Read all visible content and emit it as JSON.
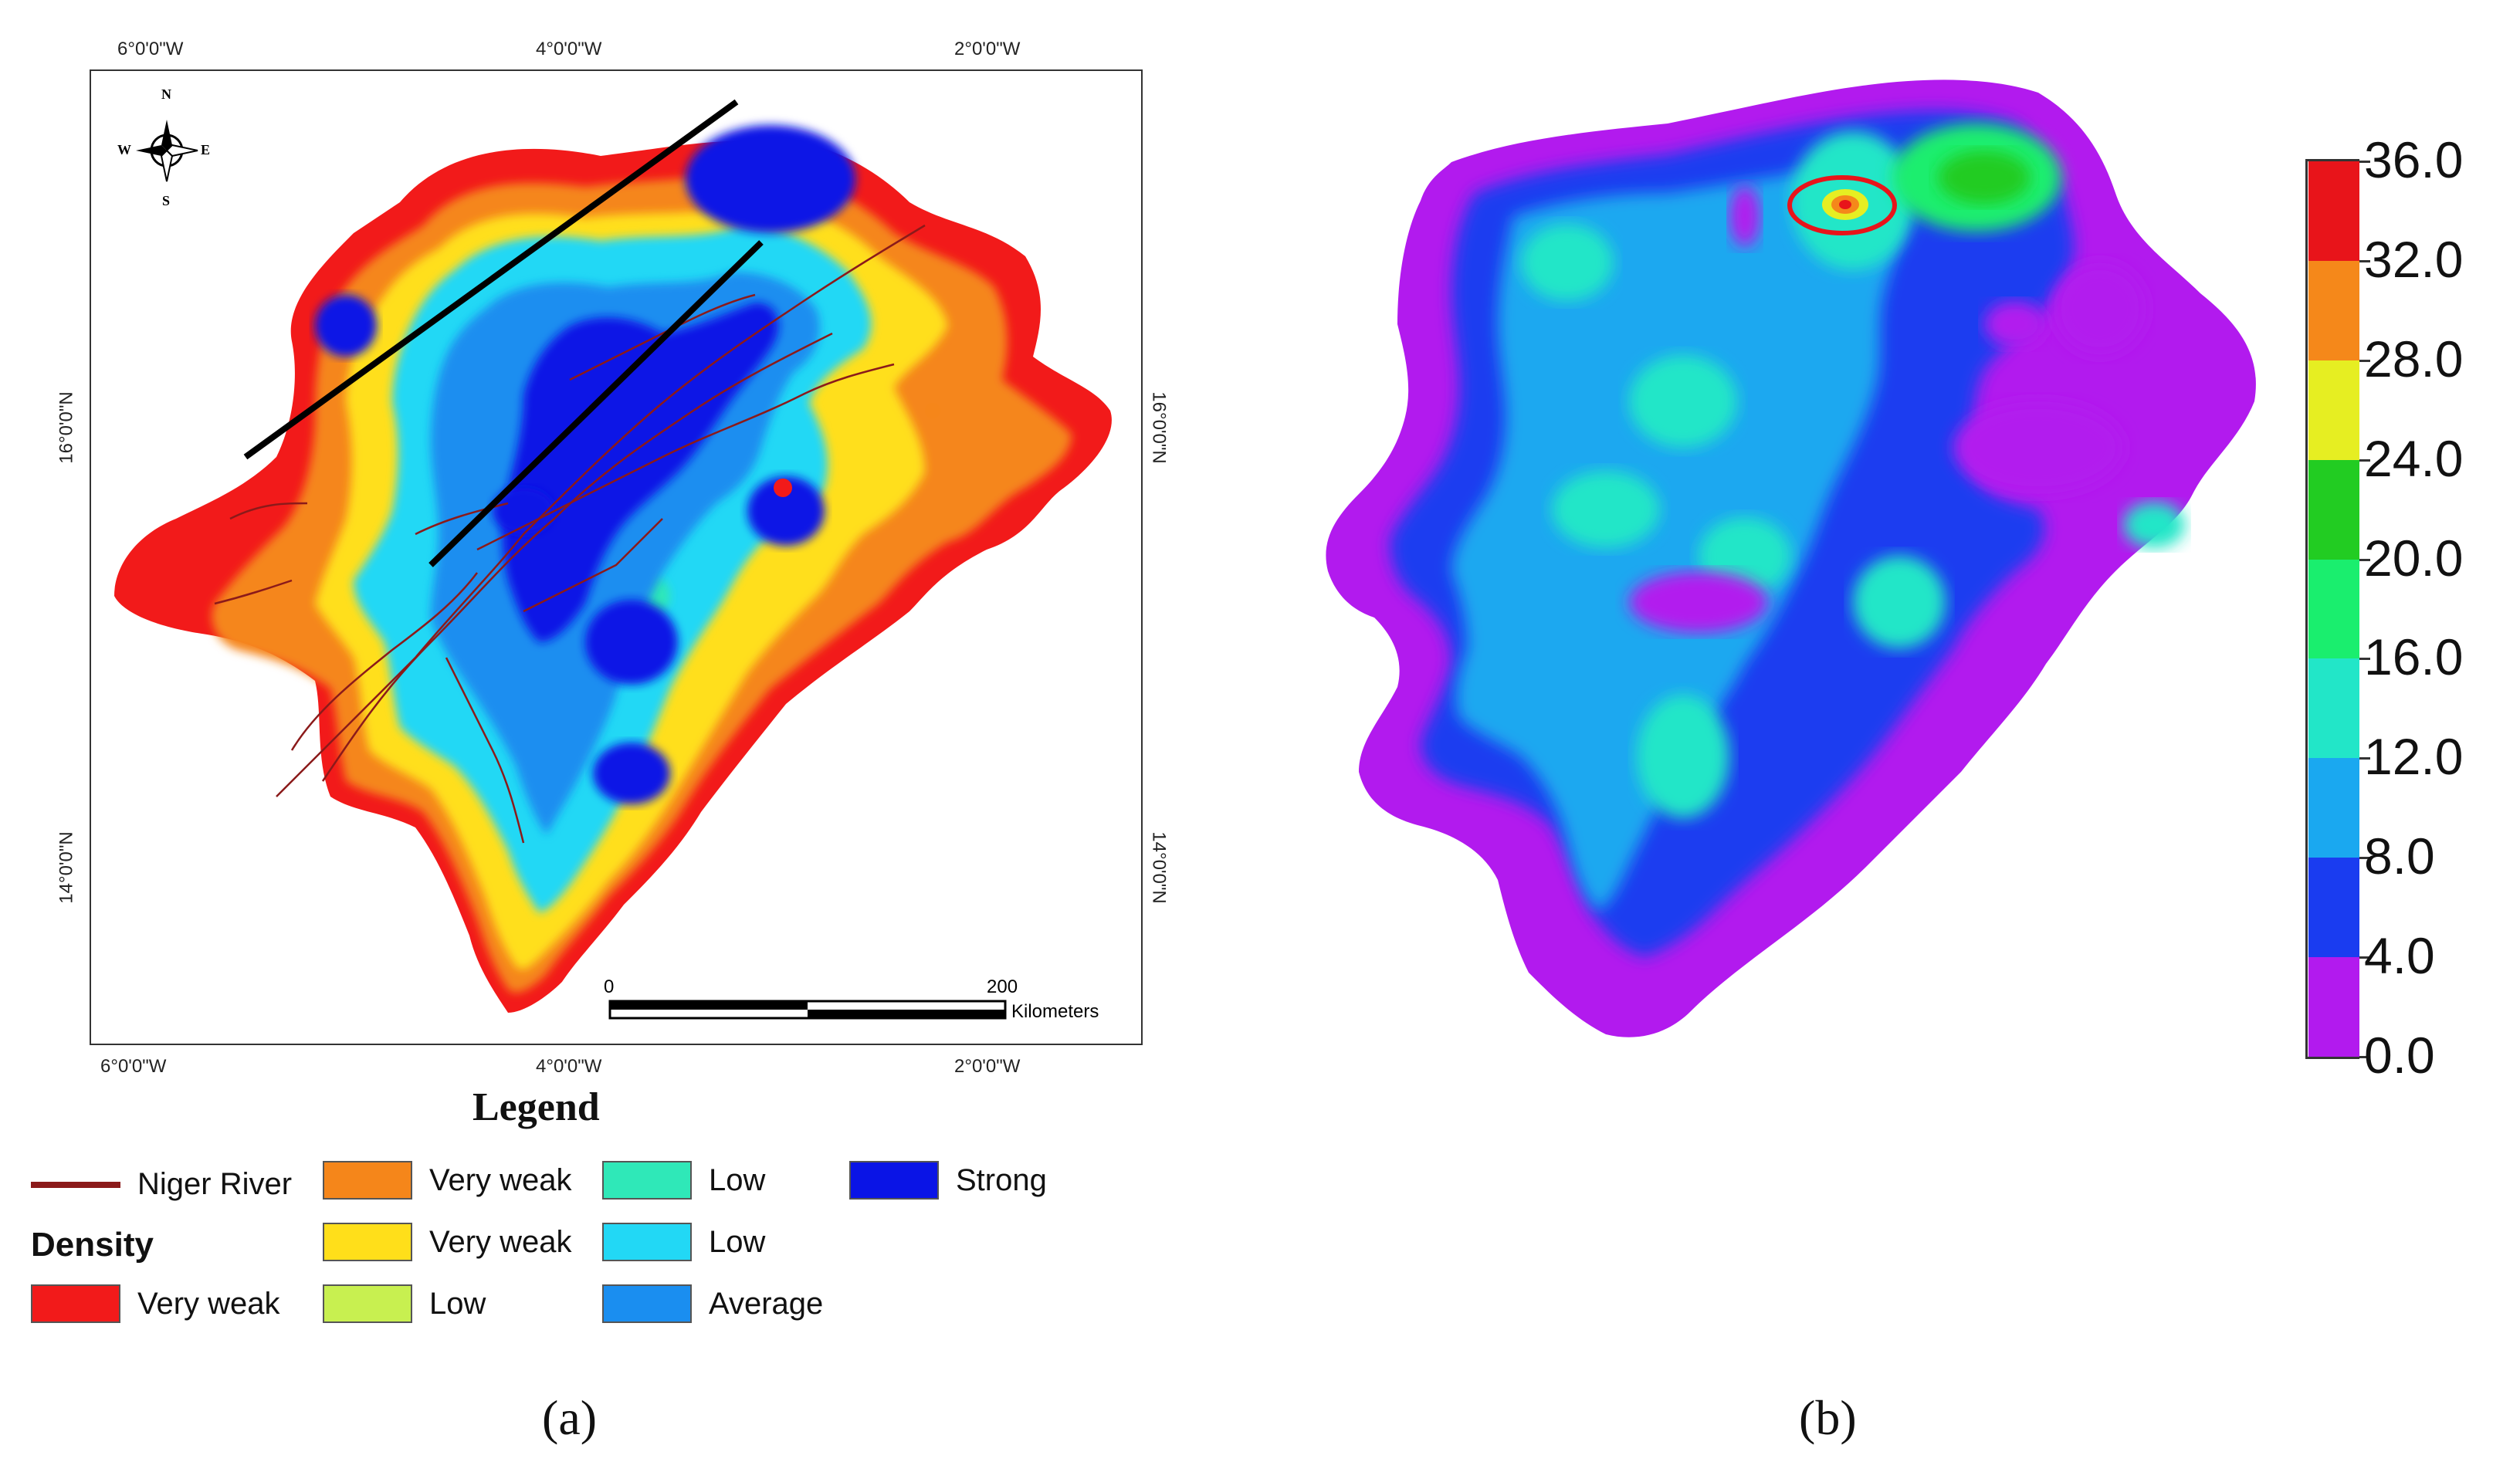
{
  "panel_a": {
    "lon_ticks": [
      "6°0'0\"W",
      "4°0'0\"W",
      "2°0'0\"W"
    ],
    "lat_ticks": [
      "16°0'0\"N",
      "14°0'0\"N"
    ],
    "compass": {
      "n": "N",
      "s": "S",
      "e": "E",
      "w": "W"
    },
    "scale_bar": {
      "start": "0",
      "end": "200",
      "unit": "Kilometers"
    },
    "legend": {
      "title": "Legend",
      "river": {
        "label": "Niger River",
        "color": "#8b1a1a"
      },
      "density_title": "Density",
      "classes": [
        {
          "label": "Very weak",
          "color": "#f21a1a"
        },
        {
          "label": "Very weak",
          "color": "#f5861a"
        },
        {
          "label": "Very weak",
          "color": "#ffdf1a"
        },
        {
          "label": "Low",
          "color": "#c8f050"
        },
        {
          "label": "Low",
          "color": "#2fe8b8"
        },
        {
          "label": "Low",
          "color": "#22d8f5"
        },
        {
          "label": "Average",
          "color": "#1a8ef0"
        },
        {
          "label": "Strong",
          "color": "#0a14e6"
        }
      ]
    },
    "caption": "(a)"
  },
  "panel_b": {
    "colorbar": {
      "ticks": [
        "36.0",
        "32.0",
        "28.0",
        "24.0",
        "20.0",
        "16.0",
        "12.0",
        "8.0",
        "4.0",
        "0.0"
      ],
      "colors": [
        "#e8141a",
        "#f5881a",
        "#e6ee22",
        "#22cc22",
        "#1aee6e",
        "#22e6c8",
        "#1aa8f0",
        "#1a3cf0",
        "#b21aee"
      ]
    },
    "caption": "(b)"
  }
}
